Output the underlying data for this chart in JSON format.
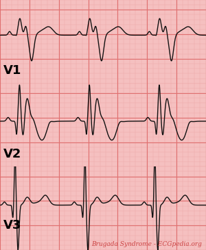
{
  "bg_color": "#f5c0c0",
  "grid_major_color": "#e07070",
  "grid_minor_color": "#eeaaaa",
  "ecg_color": "#111111",
  "border_color": "#cc6666",
  "title": "Brugada Syndrome - ECGpedia.org",
  "title_color": "#cc4444",
  "leads": [
    "V1",
    "V2",
    "V3"
  ],
  "label_fontsize": 13,
  "title_fontsize": 6.5,
  "figsize": [
    3.0,
    3.65
  ],
  "dpi": 100
}
